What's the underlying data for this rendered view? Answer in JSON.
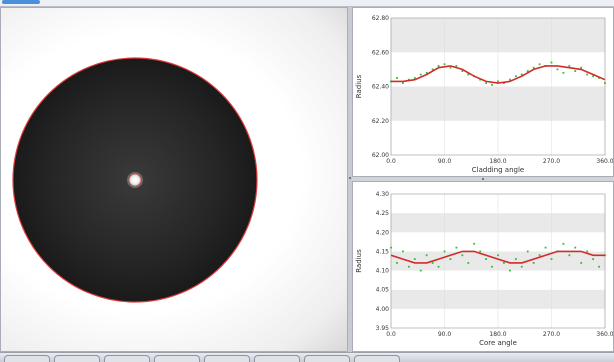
{
  "colors": {
    "fit_line": "#d42a2a",
    "measured_points": "#2fbf2f",
    "fiber_outline": "#e03a3a",
    "band_dark": "#e9e9e9",
    "band_light": "#ffffff"
  },
  "image_view": {
    "description_icon": "fiber-endface-icon"
  },
  "chart_data": [
    {
      "type": "line",
      "id": "cladding",
      "xlabel": "Cladding angle",
      "ylabel": "Radius",
      "xlim": [
        0,
        360
      ],
      "ylim": [
        62.0,
        62.8
      ],
      "x_ticks": [
        "0.0",
        "90.0",
        "180.0",
        "270.0",
        "360.0"
      ],
      "y_ticks": [
        "62.00",
        "62.20",
        "62.40",
        "62.60",
        "62.80"
      ],
      "series": [
        {
          "kind": "line",
          "x": [
            0,
            20,
            40,
            60,
            80,
            100,
            120,
            140,
            160,
            180,
            200,
            220,
            240,
            260,
            280,
            300,
            320,
            340,
            360
          ],
          "y": [
            62.43,
            62.43,
            62.44,
            62.47,
            62.51,
            62.52,
            62.5,
            62.46,
            62.43,
            62.42,
            62.43,
            62.46,
            62.5,
            62.52,
            62.52,
            62.51,
            62.5,
            62.47,
            62.44
          ]
        },
        {
          "kind": "scatter",
          "x": [
            0,
            10,
            20,
            30,
            40,
            50,
            60,
            70,
            80,
            90,
            100,
            110,
            120,
            130,
            140,
            150,
            160,
            170,
            180,
            190,
            200,
            210,
            220,
            230,
            240,
            250,
            260,
            270,
            280,
            290,
            300,
            310,
            320,
            330,
            340,
            350,
            360
          ],
          "y": [
            62.43,
            62.45,
            62.42,
            62.44,
            62.45,
            62.47,
            62.48,
            62.5,
            62.52,
            62.53,
            62.51,
            62.52,
            62.49,
            62.47,
            62.46,
            62.44,
            62.42,
            62.41,
            62.43,
            62.42,
            62.44,
            62.46,
            62.47,
            62.49,
            62.51,
            62.53,
            62.52,
            62.54,
            62.5,
            62.48,
            62.52,
            62.49,
            62.51,
            62.47,
            62.46,
            62.45,
            62.42
          ]
        }
      ]
    },
    {
      "type": "line",
      "id": "core",
      "xlabel": "Core angle",
      "ylabel": "Radius",
      "xlim": [
        0,
        360
      ],
      "ylim": [
        3.95,
        4.3
      ],
      "x_ticks": [
        "0.0",
        "90.0",
        "180.0",
        "270.0",
        "360.0"
      ],
      "y_ticks": [
        "3.95",
        "4.00",
        "4.05",
        "4.10",
        "4.15",
        "4.20",
        "4.25",
        "4.30"
      ],
      "series": [
        {
          "kind": "line",
          "x": [
            0,
            20,
            40,
            60,
            80,
            100,
            120,
            140,
            160,
            180,
            200,
            220,
            240,
            260,
            280,
            300,
            320,
            340,
            360
          ],
          "y": [
            4.14,
            4.13,
            4.12,
            4.12,
            4.13,
            4.14,
            4.15,
            4.15,
            4.14,
            4.13,
            4.12,
            4.12,
            4.13,
            4.14,
            4.15,
            4.15,
            4.15,
            4.14,
            4.14
          ]
        },
        {
          "kind": "scatter",
          "x": [
            0,
            10,
            20,
            30,
            40,
            50,
            60,
            70,
            80,
            90,
            100,
            110,
            120,
            130,
            140,
            150,
            160,
            170,
            180,
            190,
            200,
            210,
            220,
            230,
            240,
            250,
            260,
            270,
            280,
            290,
            300,
            310,
            320,
            330,
            340,
            350,
            360
          ],
          "y": [
            4.16,
            4.12,
            4.15,
            4.11,
            4.13,
            4.1,
            4.14,
            4.12,
            4.11,
            4.15,
            4.13,
            4.16,
            4.14,
            4.12,
            4.17,
            4.15,
            4.13,
            4.11,
            4.14,
            4.12,
            4.1,
            4.13,
            4.11,
            4.15,
            4.12,
            4.14,
            4.16,
            4.13,
            4.15,
            4.17,
            4.14,
            4.16,
            4.12,
            4.15,
            4.13,
            4.11,
            4.14
          ]
        }
      ]
    }
  ]
}
